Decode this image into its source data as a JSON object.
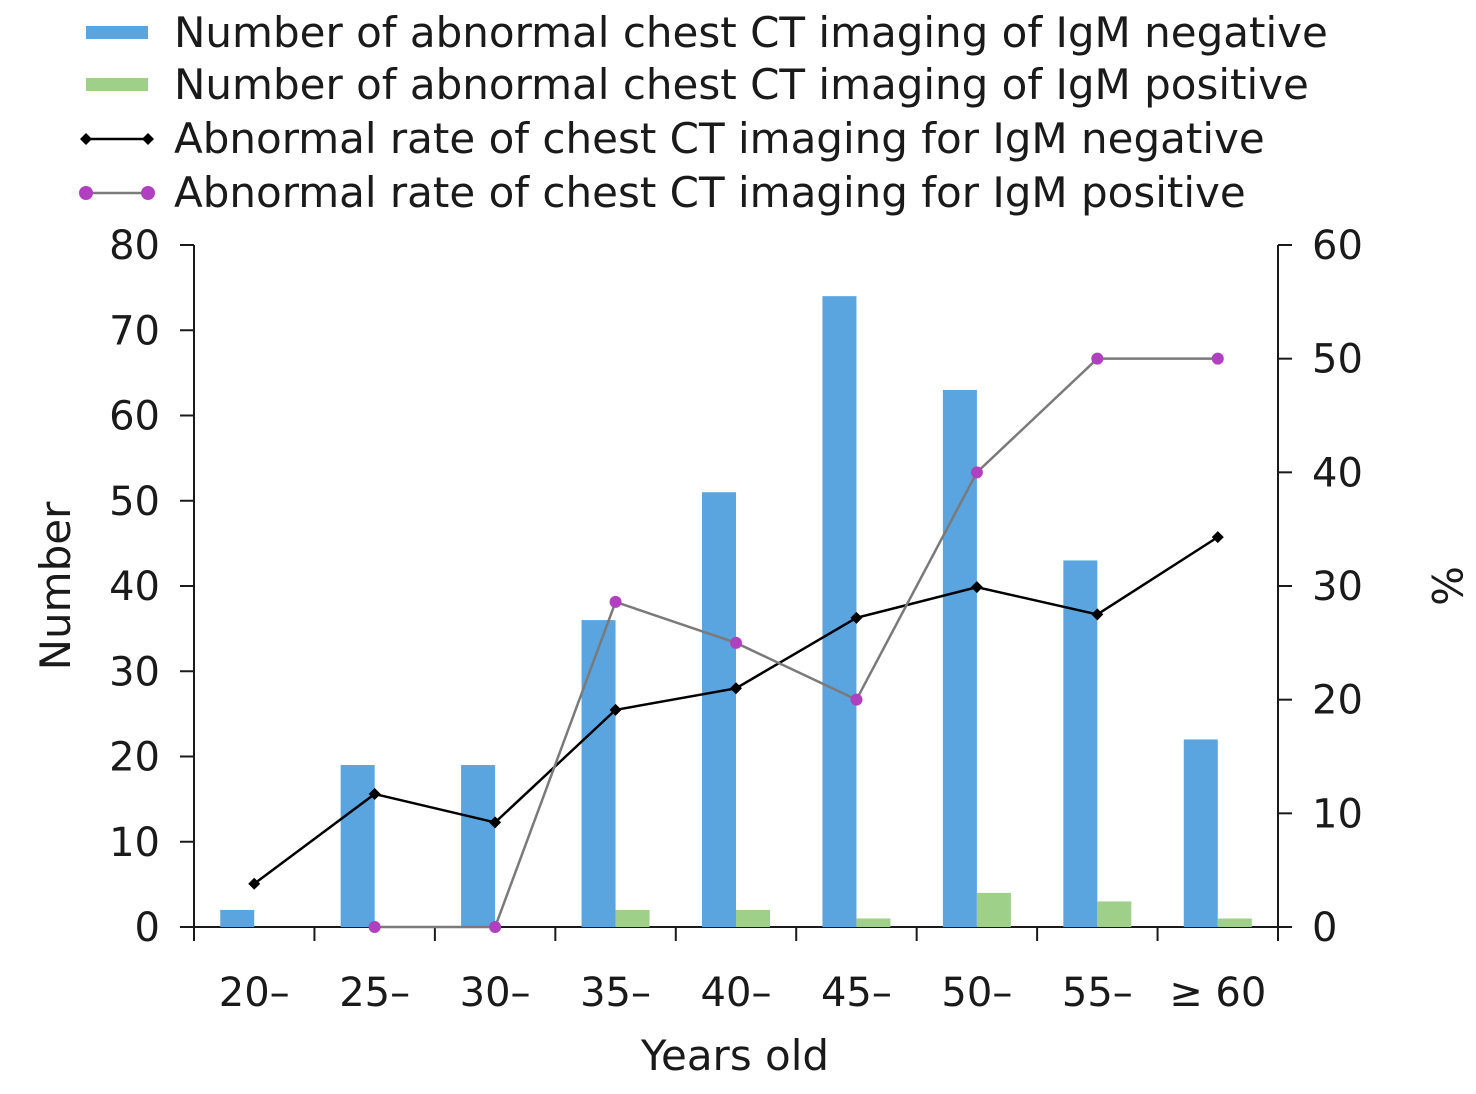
{
  "chart_data": {
    "type": "bar",
    "xlabel": "Years old",
    "ylabel_left": "Number",
    "ylabel_right": "%",
    "ylim_left": [
      0,
      80
    ],
    "ylim_right": [
      0,
      60
    ],
    "yticks_left": [
      "0",
      "10",
      "20",
      "30",
      "40",
      "50",
      "60",
      "70",
      "80"
    ],
    "yticks_right": [
      "0",
      "10",
      "20",
      "30",
      "40",
      "50",
      "60"
    ],
    "categories": [
      "20–",
      "25–",
      "30–",
      "35–",
      "40–",
      "45–",
      "50–",
      "55–",
      "≥ 60"
    ],
    "grid": false,
    "legend_position": "top",
    "series": [
      {
        "name": "Number of abnormal chest CT imaging of IgM negative",
        "kind": "bar",
        "axis": "left",
        "color": "#5aa5e0",
        "values": [
          2,
          19,
          19,
          36,
          51,
          74,
          63,
          43,
          22
        ]
      },
      {
        "name": "Number of abnormal chest CT imaging of IgM positive",
        "kind": "bar",
        "axis": "left",
        "color": "#9fd08a",
        "values": [
          0,
          0,
          0,
          2,
          2,
          1,
          4,
          3,
          1
        ]
      },
      {
        "name": "Abnormal rate of chest CT imaging for IgM negative",
        "kind": "line",
        "axis": "right",
        "color": "#000000",
        "marker": "diamond",
        "values": [
          3.8,
          11.7,
          9.2,
          19.1,
          21.0,
          27.2,
          29.9,
          27.5,
          34.3
        ]
      },
      {
        "name": "Abnormal rate of chest CT imaging for IgM positive",
        "kind": "line",
        "axis": "right",
        "color": "#7a7a7a",
        "marker_color": "#b040c0",
        "marker": "circle",
        "values": [
          null,
          0,
          0,
          28.6,
          25.0,
          20.0,
          40.0,
          50.0,
          50.0
        ]
      }
    ]
  }
}
